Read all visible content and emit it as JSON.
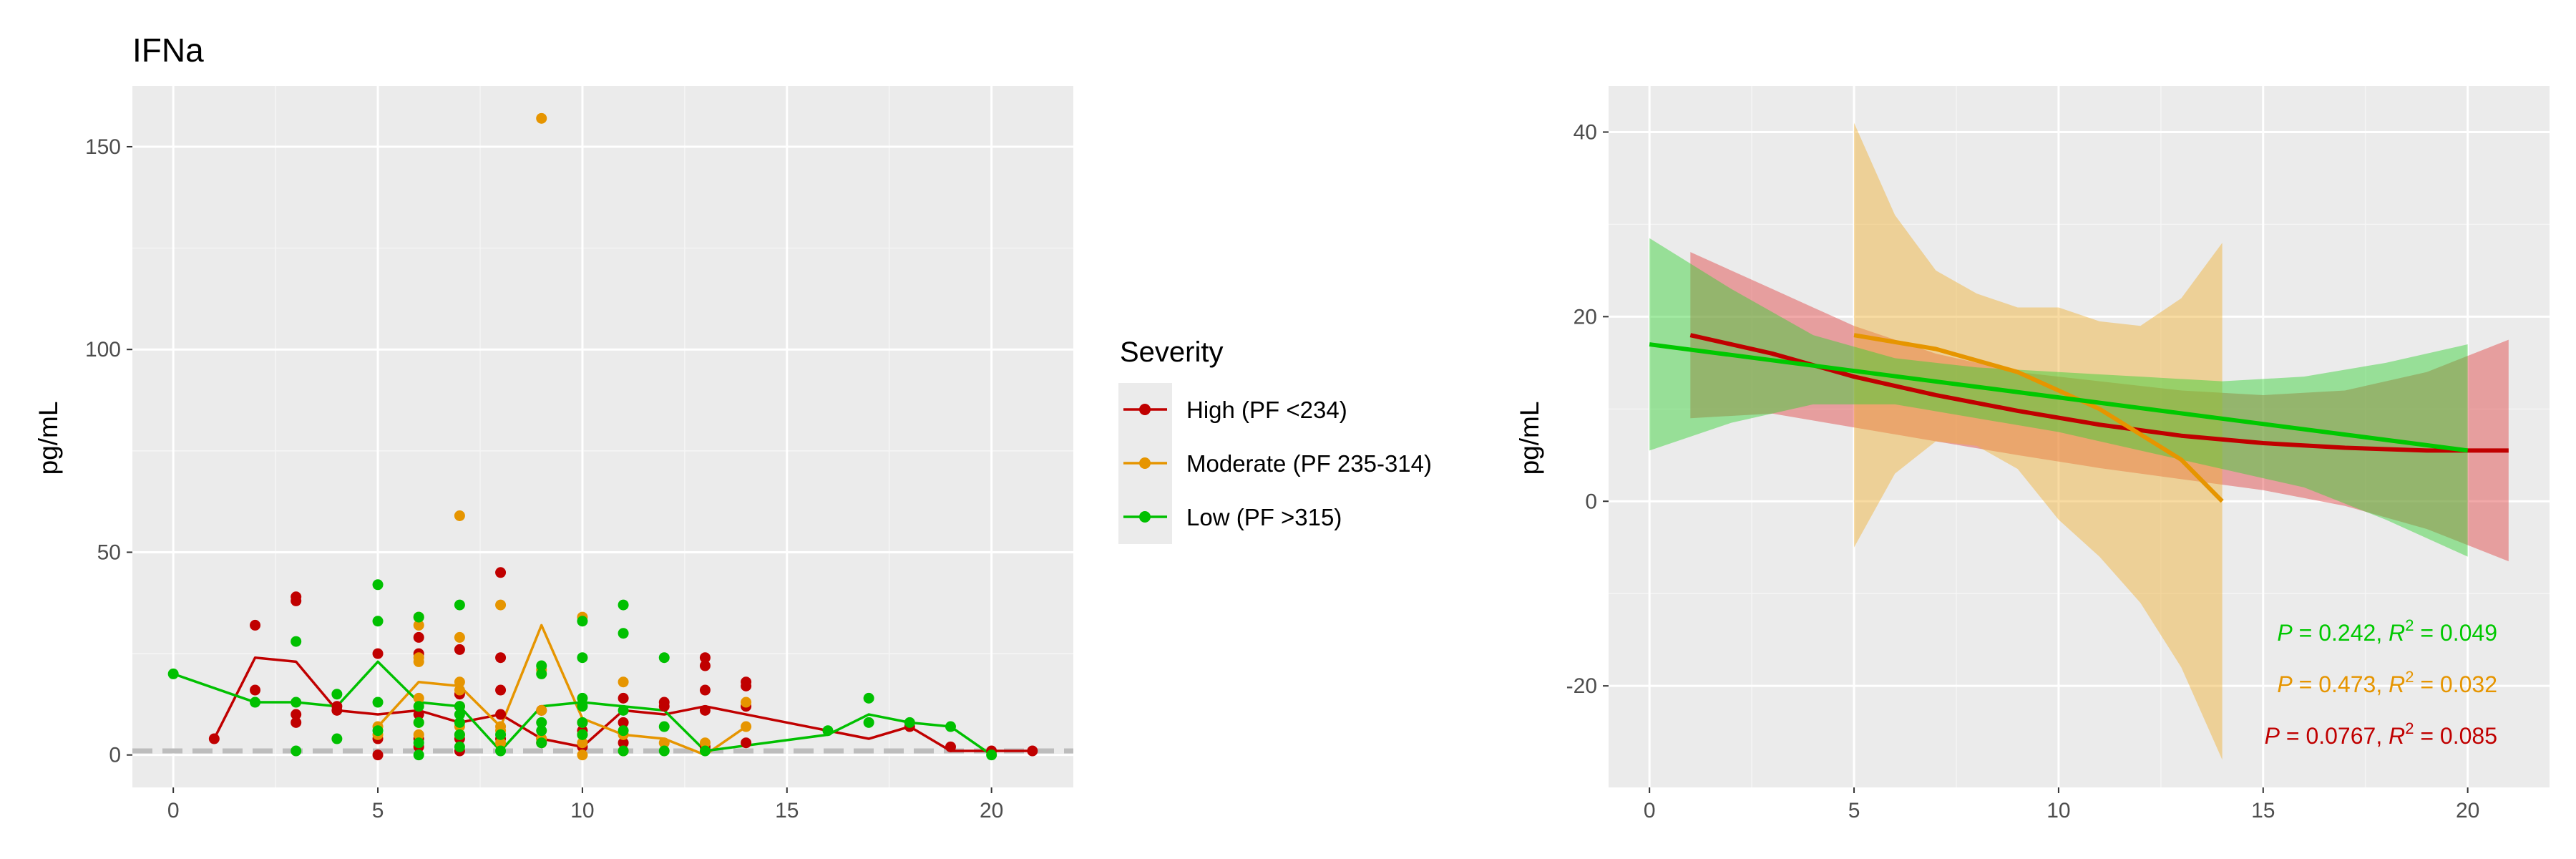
{
  "chart_data": [
    {
      "type": "scatter",
      "title": "IFNa",
      "xlabel": "",
      "ylabel": "pg/mL",
      "xlim": [
        -1,
        22
      ],
      "ylim": [
        -8,
        165
      ],
      "xticks": [
        0,
        5,
        10,
        15,
        20
      ],
      "yticks": [
        0,
        50,
        100,
        150
      ],
      "grid": true,
      "reference_line": {
        "y": 1,
        "style": "dashed",
        "color": "#bdbdbd"
      },
      "legend": {
        "title": "Severity",
        "placement": "right",
        "entries": [
          "High (PF <234)",
          "Moderate (PF 235-314)",
          "Low (PF >315)"
        ]
      },
      "series": [
        {
          "name": "High (PF <234)",
          "color": "#c00000",
          "points": [
            [
              1,
              4
            ],
            [
              2,
              32
            ],
            [
              2,
              16
            ],
            [
              3,
              39
            ],
            [
              3,
              38
            ],
            [
              3,
              10
            ],
            [
              3,
              8
            ],
            [
              4,
              12
            ],
            [
              4,
              11
            ],
            [
              5,
              25
            ],
            [
              5,
              4
            ],
            [
              5,
              0
            ],
            [
              6,
              29
            ],
            [
              6,
              25
            ],
            [
              6,
              10
            ],
            [
              6,
              4
            ],
            [
              6,
              2
            ],
            [
              7,
              26
            ],
            [
              7,
              15
            ],
            [
              7,
              12
            ],
            [
              7,
              4
            ],
            [
              7,
              1
            ],
            [
              8,
              45
            ],
            [
              8,
              24
            ],
            [
              8,
              16
            ],
            [
              8,
              10
            ],
            [
              8,
              4
            ],
            [
              9,
              11
            ],
            [
              9,
              4
            ],
            [
              9,
              3
            ],
            [
              10,
              6
            ],
            [
              10,
              2
            ],
            [
              11,
              14
            ],
            [
              11,
              8
            ],
            [
              11,
              3
            ],
            [
              12,
              13
            ],
            [
              12,
              12
            ],
            [
              13,
              24
            ],
            [
              13,
              22
            ],
            [
              13,
              16
            ],
            [
              13,
              11
            ],
            [
              13,
              2
            ],
            [
              14,
              18
            ],
            [
              14,
              17
            ],
            [
              14,
              12
            ],
            [
              14,
              3
            ],
            [
              18,
              7
            ],
            [
              19,
              2
            ],
            [
              20,
              1
            ],
            [
              21,
              1
            ]
          ],
          "mean_line": [
            [
              1,
              4
            ],
            [
              2,
              24
            ],
            [
              3,
              23
            ],
            [
              4,
              11
            ],
            [
              5,
              10
            ],
            [
              6,
              11
            ],
            [
              7,
              8
            ],
            [
              8,
              10
            ],
            [
              9,
              4
            ],
            [
              10,
              2
            ],
            [
              11,
              11
            ],
            [
              12,
              10
            ],
            [
              13,
              12
            ],
            [
              14,
              10
            ],
            [
              17,
              4
            ],
            [
              18,
              7
            ],
            [
              19,
              1
            ],
            [
              20,
              1
            ],
            [
              21,
              1
            ]
          ]
        },
        {
          "name": "Moderate (PF 235-314)",
          "color": "#e69500",
          "points": [
            [
              5,
              7
            ],
            [
              5,
              5
            ],
            [
              6,
              34
            ],
            [
              6,
              32
            ],
            [
              6,
              24
            ],
            [
              6,
              23
            ],
            [
              6,
              14
            ],
            [
              6,
              8
            ],
            [
              6,
              5
            ],
            [
              7,
              59
            ],
            [
              7,
              29
            ],
            [
              7,
              18
            ],
            [
              7,
              16
            ],
            [
              7,
              7
            ],
            [
              7,
              5
            ],
            [
              8,
              37
            ],
            [
              8,
              7
            ],
            [
              8,
              6
            ],
            [
              8,
              3
            ],
            [
              9,
              157
            ],
            [
              9,
              21
            ],
            [
              9,
              11
            ],
            [
              9,
              4
            ],
            [
              10,
              34
            ],
            [
              10,
              8
            ],
            [
              10,
              5
            ],
            [
              10,
              3
            ],
            [
              10,
              0
            ],
            [
              11,
              18
            ],
            [
              11,
              5
            ],
            [
              11,
              1
            ],
            [
              12,
              3
            ],
            [
              13,
              3
            ],
            [
              14,
              13
            ],
            [
              14,
              7
            ]
          ],
          "mean_line": [
            [
              5,
              7
            ],
            [
              6,
              18
            ],
            [
              7,
              17
            ],
            [
              8,
              7
            ],
            [
              9,
              32
            ],
            [
              10,
              9
            ],
            [
              11,
              5
            ],
            [
              12,
              4
            ],
            [
              13,
              0
            ],
            [
              14,
              7
            ]
          ]
        },
        {
          "name": "Low (PF >315)",
          "color": "#00c000",
          "points": [
            [
              0,
              20
            ],
            [
              2,
              13
            ],
            [
              3,
              28
            ],
            [
              3,
              13
            ],
            [
              3,
              1
            ],
            [
              4,
              15
            ],
            [
              4,
              4
            ],
            [
              5,
              42
            ],
            [
              5,
              33
            ],
            [
              5,
              13
            ],
            [
              5,
              6
            ],
            [
              6,
              34
            ],
            [
              6,
              12
            ],
            [
              6,
              8
            ],
            [
              6,
              3
            ],
            [
              6,
              0
            ],
            [
              7,
              37
            ],
            [
              7,
              12
            ],
            [
              7,
              10
            ],
            [
              7,
              8
            ],
            [
              7,
              5
            ],
            [
              7,
              2
            ],
            [
              8,
              5
            ],
            [
              8,
              1
            ],
            [
              9,
              22
            ],
            [
              9,
              20
            ],
            [
              9,
              8
            ],
            [
              9,
              6
            ],
            [
              9,
              3
            ],
            [
              10,
              33
            ],
            [
              10,
              24
            ],
            [
              10,
              14
            ],
            [
              10,
              12
            ],
            [
              10,
              8
            ],
            [
              10,
              5
            ],
            [
              11,
              37
            ],
            [
              11,
              30
            ],
            [
              11,
              11
            ],
            [
              11,
              6
            ],
            [
              11,
              1
            ],
            [
              12,
              24
            ],
            [
              12,
              7
            ],
            [
              12,
              1
            ],
            [
              13,
              1
            ],
            [
              16,
              6
            ],
            [
              17,
              14
            ],
            [
              17,
              8
            ],
            [
              18,
              8
            ],
            [
              19,
              7
            ],
            [
              20,
              0
            ]
          ],
          "mean_line": [
            [
              0,
              20
            ],
            [
              2,
              13
            ],
            [
              3,
              13
            ],
            [
              4,
              12
            ],
            [
              5,
              23
            ],
            [
              6,
              13
            ],
            [
              7,
              12
            ],
            [
              8,
              1
            ],
            [
              9,
              12
            ],
            [
              10,
              13
            ],
            [
              11,
              12
            ],
            [
              12,
              11
            ],
            [
              13,
              1
            ],
            [
              16,
              5
            ],
            [
              17,
              10
            ],
            [
              18,
              8
            ],
            [
              19,
              7
            ],
            [
              20,
              0
            ]
          ]
        }
      ]
    },
    {
      "type": "line",
      "title": "",
      "xlabel": "",
      "ylabel": "pg/mL",
      "xlim": [
        -1,
        22
      ],
      "ylim": [
        -31,
        45
      ],
      "xticks": [
        0,
        5,
        10,
        15,
        20
      ],
      "yticks": [
        -20,
        0,
        20,
        40
      ],
      "grid": true,
      "series": [
        {
          "name": "",
          "color": "#c00000",
          "ribbon_color": "#e04040",
          "fit": [
            [
              1,
              18
            ],
            [
              3,
              16
            ],
            [
              5,
              13.5
            ],
            [
              7,
              11.5
            ],
            [
              9,
              9.8
            ],
            [
              11,
              8.3
            ],
            [
              13,
              7.1
            ],
            [
              15,
              6.3
            ],
            [
              17,
              5.8
            ],
            [
              19,
              5.5
            ],
            [
              21,
              5.5
            ]
          ],
          "ribbon": [
            [
              1,
              27,
              9
            ],
            [
              3,
              23,
              9.5
            ],
            [
              5,
              19,
              8
            ],
            [
              7,
              16,
              6.5
            ],
            [
              9,
              14,
              5
            ],
            [
              11,
              13,
              3.6
            ],
            [
              13,
              12,
              2.4
            ],
            [
              15,
              11.5,
              1.2
            ],
            [
              17,
              12,
              -0.5
            ],
            [
              19,
              14,
              -3
            ],
            [
              21,
              17.5,
              -6.5
            ]
          ]
        },
        {
          "name": "",
          "color": "#e69500",
          "ribbon_color": "#f0b030",
          "fit": [
            [
              5,
              18
            ],
            [
              7,
              16.5
            ],
            [
              9,
              14
            ],
            [
              11,
              10
            ],
            [
              13,
              4.5
            ],
            [
              14,
              0
            ]
          ],
          "ribbon": [
            [
              5,
              41,
              -5
            ],
            [
              6,
              31,
              3
            ],
            [
              7,
              25,
              6.5
            ],
            [
              8,
              22.5,
              6
            ],
            [
              9,
              21,
              3.5
            ],
            [
              10,
              21,
              -2
            ],
            [
              11,
              19.5,
              -6
            ],
            [
              12,
              19,
              -11
            ],
            [
              13,
              22,
              -18
            ],
            [
              14,
              28,
              -28
            ]
          ]
        },
        {
          "name": "",
          "color": "#00c800",
          "ribbon_color": "#30d030",
          "fit": [
            [
              0,
              17
            ],
            [
              20,
              5.5
            ]
          ],
          "ribbon": [
            [
              0,
              28.5,
              5.5
            ],
            [
              2,
              23,
              8.5
            ],
            [
              4,
              18,
              10.5
            ],
            [
              6,
              15.5,
              10.5
            ],
            [
              8,
              14.5,
              9
            ],
            [
              10,
              14,
              7.5
            ],
            [
              12,
              13.5,
              5.5
            ],
            [
              14,
              13,
              3.5
            ],
            [
              16,
              13.5,
              1.5
            ],
            [
              18,
              15,
              -2
            ],
            [
              20,
              17,
              -6
            ]
          ]
        }
      ],
      "annotations": [
        {
          "p": "0.242",
          "r2": "0.049",
          "color": "#00c800"
        },
        {
          "p": "0.473",
          "r2": "0.032",
          "color": "#e69500"
        },
        {
          "p": "0.0767",
          "r2": "0.085",
          "color": "#c00000"
        }
      ]
    }
  ]
}
